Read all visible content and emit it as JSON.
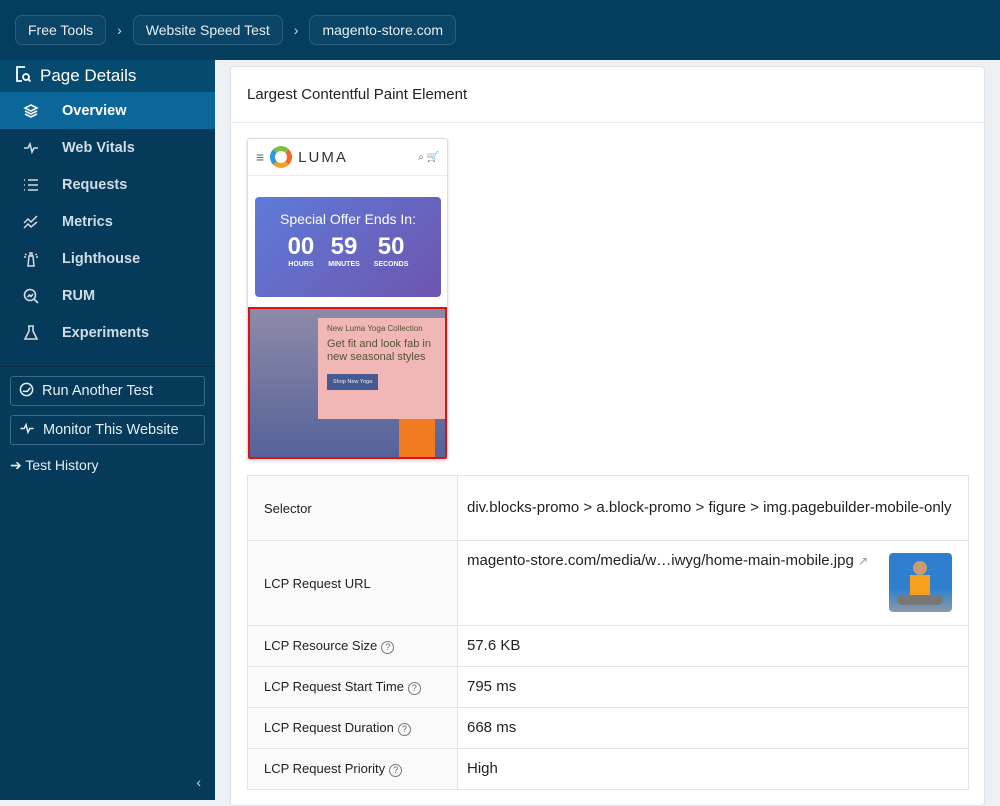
{
  "breadcrumbs": [
    "Free Tools",
    "Website Speed Test",
    "magento-store.com"
  ],
  "sidebar": {
    "section_title": "Page Details",
    "items": [
      {
        "label": "Overview",
        "icon": "layers-icon",
        "active": true
      },
      {
        "label": "Web Vitals",
        "icon": "pulse-icon"
      },
      {
        "label": "Requests",
        "icon": "list-icon"
      },
      {
        "label": "Metrics",
        "icon": "chart-lines-icon"
      },
      {
        "label": "Lighthouse",
        "icon": "lighthouse-icon"
      },
      {
        "label": "RUM",
        "icon": "rum-search-icon"
      },
      {
        "label": "Experiments",
        "icon": "flask-icon"
      }
    ],
    "run_another": "Run Another Test",
    "monitor": "Monitor This Website",
    "history": "➔ Test History",
    "collapse": "‹"
  },
  "card": {
    "title": "Largest Contentful Paint Element",
    "screenshot": {
      "logo": "LUMA",
      "offer_title": "Special Offer Ends In:",
      "countdown": [
        {
          "v": "00",
          "l": "HOURS"
        },
        {
          "v": "59",
          "l": "MINUTES"
        },
        {
          "v": "50",
          "l": "SECONDS"
        }
      ],
      "promo_kicker": "New Luma Yoga Collection",
      "promo_heading": "Get fit and look fab in new seasonal styles",
      "promo_button": "Shop New Yoga"
    },
    "rows": [
      {
        "label": "Selector",
        "value": "div.blocks-promo > a.block-promo > figure > img.pagebuilder-mobile-only"
      },
      {
        "label": "LCP Request URL",
        "value": "magento-store.com/media/w…iwyg/home-main-mobile.jpg"
      },
      {
        "label": "LCP Resource Size",
        "value": "57.6 KB",
        "help": "?"
      },
      {
        "label": "LCP Request Start Time",
        "value": "795 ms",
        "help": "?"
      },
      {
        "label": "LCP Request Duration",
        "value": "668 ms",
        "help": "?"
      },
      {
        "label": "LCP Request Priority",
        "value": "High",
        "help": "?"
      }
    ]
  }
}
